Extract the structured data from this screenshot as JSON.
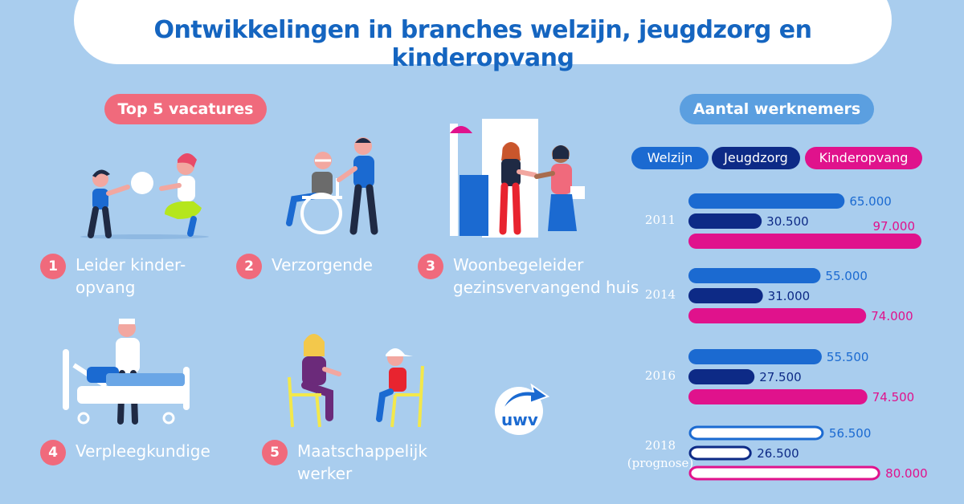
{
  "title": "Ontwikkelingen in branches welzijn, jeugdzorg en kinderopvang",
  "top5": {
    "heading": "Top 5 vacatures",
    "items": [
      {
        "number": "1",
        "label": "Leider kinder-\nopvang"
      },
      {
        "number": "2",
        "label": "Verzorgende"
      },
      {
        "number": "3",
        "label": "Woonbegeleider\ngezinsvervangend huis"
      },
      {
        "number": "4",
        "label": "Verpleegkundige"
      },
      {
        "number": "5",
        "label": "Maatschappelijk\nwerker"
      }
    ]
  },
  "chart_heading": "Aantal werknemers",
  "logo_text": "uwv",
  "colors": {
    "background": "#a9cdee",
    "welzijn": "#1b6ad1",
    "jeugdzorg": "#0d2a86",
    "kinderopvang": "#e0128c",
    "accent_pink": "#f06a7c",
    "title_blue": "#1565c0"
  },
  "chart_data": {
    "type": "bar",
    "orientation": "horizontal",
    "categories": [
      "2011",
      "2014",
      "2016",
      "2018\n(prognose)"
    ],
    "series": [
      {
        "name": "Welzijn",
        "values": [
          65000,
          55000,
          55500,
          56500
        ],
        "labels": [
          "65.000",
          "55.000",
          "55.500",
          "56.500"
        ]
      },
      {
        "name": "Jeugdzorg",
        "values": [
          30500,
          31000,
          27500,
          26500
        ],
        "labels": [
          "30.500",
          "31.000",
          "27.500",
          "26.500"
        ]
      },
      {
        "name": "Kinderopvang",
        "values": [
          97000,
          74000,
          74500,
          80000
        ],
        "labels": [
          "97.000",
          "74.000",
          "74.500",
          "80.000"
        ]
      }
    ],
    "prognosis_category": "2018\n(prognose)",
    "legend_position": "top",
    "grid": false
  }
}
